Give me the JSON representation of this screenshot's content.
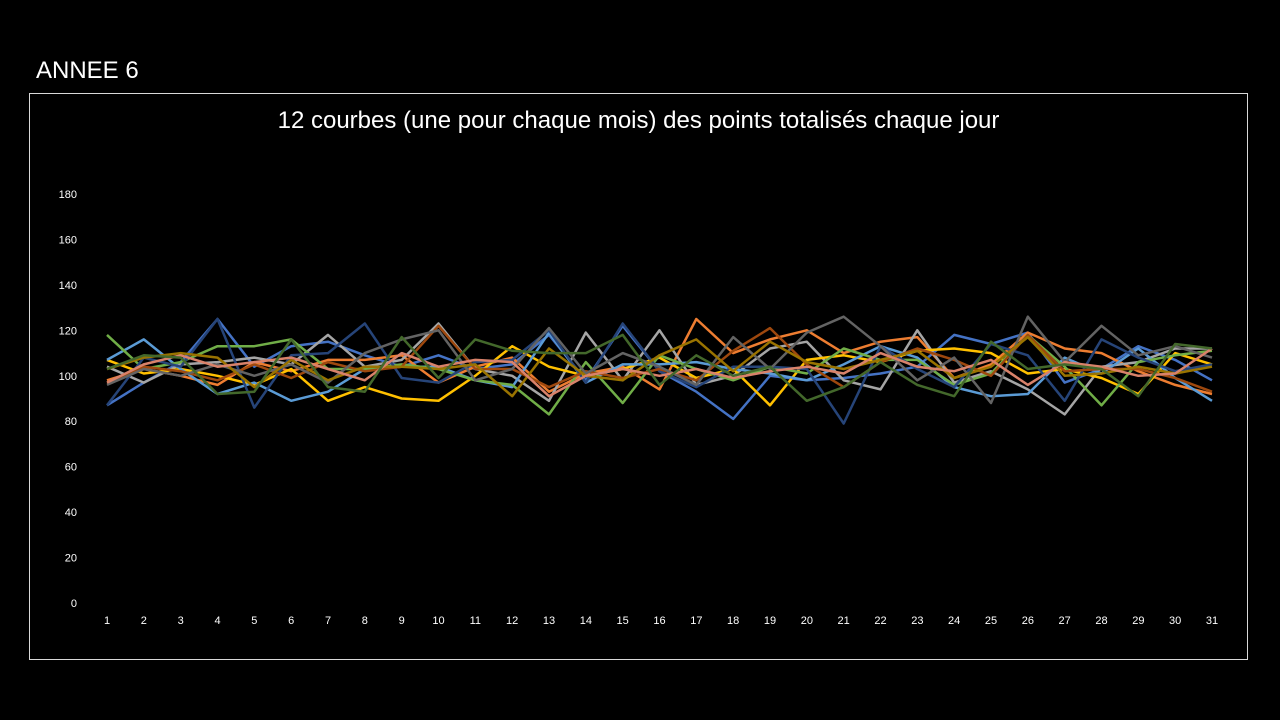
{
  "slide": {
    "title": "ANNEE 6"
  },
  "chart_data": {
    "type": "line",
    "title": "12 courbes (une pour chaque mois) des points totalisés chaque jour",
    "xlabel": "",
    "ylabel": "",
    "ylim": [
      0,
      180
    ],
    "yticks": [
      0,
      20,
      40,
      60,
      80,
      100,
      120,
      140,
      160,
      180
    ],
    "x": [
      1,
      2,
      3,
      4,
      5,
      6,
      7,
      8,
      9,
      10,
      11,
      12,
      13,
      14,
      15,
      16,
      17,
      18,
      19,
      20,
      21,
      22,
      23,
      24,
      25,
      26,
      27,
      28,
      29,
      30,
      31
    ],
    "grid": false,
    "legend": "none",
    "series": [
      {
        "color": "#4472c4",
        "values": [
          87,
          97,
          106,
          125,
          104,
          113,
          115,
          109,
          104,
          109,
          103,
          105,
          118,
          98,
          122,
          102,
          93,
          81,
          100,
          98,
          99,
          101,
          104,
          118,
          114,
          119,
          97,
          103,
          113,
          107,
          98
        ]
      },
      {
        "color": "#ed7d31",
        "values": [
          98,
          103,
          100,
          96,
          106,
          102,
          107,
          107,
          109,
          97,
          104,
          108,
          93,
          101,
          104,
          94,
          125,
          110,
          116,
          120,
          110,
          115,
          117,
          99,
          105,
          119,
          112,
          110,
          102,
          96,
          92
        ]
      },
      {
        "color": "#a5a5a5",
        "values": [
          104,
          97,
          105,
          106,
          108,
          105,
          118,
          104,
          107,
          123,
          103,
          100,
          89,
          119,
          98,
          120,
          96,
          100,
          112,
          115,
          98,
          94,
          120,
          97,
          102,
          94,
          83,
          104,
          106,
          112,
          112
        ]
      },
      {
        "color": "#ffc000",
        "values": [
          107,
          101,
          103,
          100,
          96,
          103,
          89,
          95,
          90,
          89,
          100,
          113,
          104,
          100,
          103,
          108,
          99,
          103,
          87,
          107,
          109,
          106,
          111,
          112,
          110,
          101,
          103,
          99,
          92,
          110,
          105
        ]
      },
      {
        "color": "#5b9bd5",
        "values": [
          107,
          116,
          103,
          92,
          97,
          89,
          93,
          103,
          104,
          104,
          98,
          95,
          119,
          97,
          105,
          105,
          106,
          103,
          101,
          98,
          105,
          113,
          108,
          95,
          91,
          92,
          108,
          101,
          112,
          99,
          89
        ]
      },
      {
        "color": "#70ad47",
        "values": [
          118,
          103,
          106,
          113,
          113,
          116,
          103,
          103,
          105,
          103,
          98,
          96,
          83,
          106,
          88,
          109,
          103,
          98,
          104,
          101,
          112,
          107,
          107,
          96,
          101,
          118,
          104,
          87,
          106,
          109,
          111
        ]
      },
      {
        "color": "#264478",
        "values": [
          87,
          108,
          104,
          125,
          86,
          109,
          110,
          123,
          99,
          97,
          106,
          107,
          120,
          97,
          123,
          102,
          95,
          104,
          104,
          103,
          79,
          113,
          103,
          95,
          114,
          109,
          89,
          116,
          108,
          102,
          105
        ]
      },
      {
        "color": "#9e480e",
        "values": [
          97,
          104,
          102,
          98,
          105,
          99,
          106,
          102,
          104,
          122,
          103,
          103,
          95,
          102,
          99,
          103,
          98,
          111,
          121,
          105,
          95,
          106,
          112,
          107,
          100,
          118,
          102,
          103,
          103,
          99,
          93
        ]
      },
      {
        "color": "#636363",
        "values": [
          96,
          103,
          100,
          105,
          100,
          105,
          97,
          110,
          116,
          120,
          98,
          103,
          121,
          101,
          110,
          104,
          96,
          117,
          103,
          119,
          126,
          113,
          98,
          108,
          88,
          126,
          106,
          122,
          109,
          113,
          108
        ]
      },
      {
        "color": "#997300",
        "values": [
          103,
          108,
          110,
          108,
          95,
          107,
          98,
          104,
          104,
          103,
          105,
          91,
          112,
          100,
          98,
          109,
          116,
          102,
          115,
          106,
          103,
          107,
          111,
          99,
          104,
          117,
          100,
          101,
          104,
          101,
          104
        ]
      },
      {
        "color": "#d9826a",
        "values": [
          97,
          105,
          109,
          104,
          106,
          108,
          103,
          98,
          110,
          104,
          107,
          106,
          91,
          100,
          103,
          100,
          103,
          99,
          102,
          104,
          101,
          110,
          104,
          102,
          107,
          96,
          106,
          104,
          100,
          101,
          112
        ]
      },
      {
        "color": "#43682b",
        "values": [
          103,
          109,
          108,
          92,
          93,
          116,
          95,
          93,
          117,
          99,
          116,
          111,
          110,
          110,
          118,
          96,
          109,
          100,
          104,
          89,
          95,
          106,
          96,
          91,
          115,
          103,
          105,
          103,
          91,
          114,
          112
        ]
      }
    ]
  }
}
